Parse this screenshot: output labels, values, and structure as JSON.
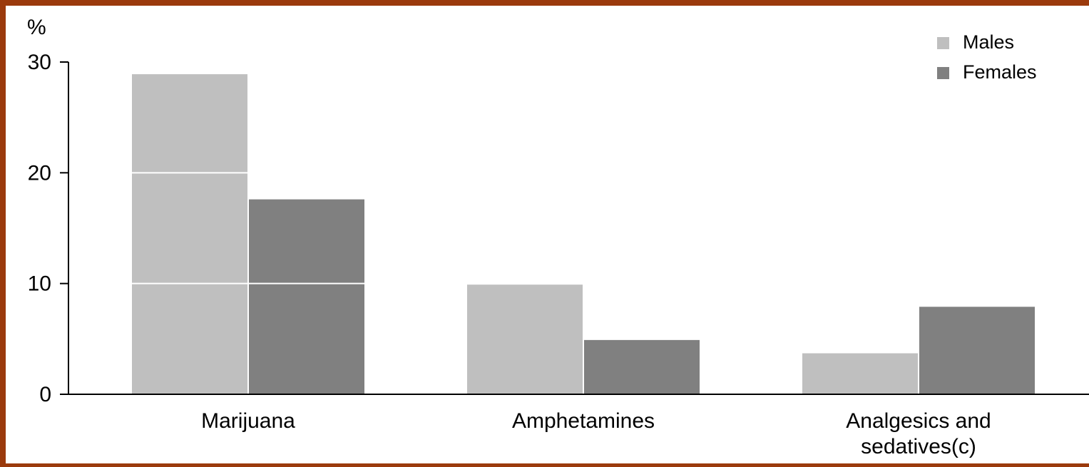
{
  "colors": {
    "frame": "#9b3a0c",
    "background": "#ffffff",
    "males": "#bfbfbf",
    "females": "#808080",
    "gridline": "#ffffff",
    "axis": "#000000"
  },
  "chart_data": {
    "type": "bar",
    "title": "",
    "xlabel": "",
    "ylabel": "%",
    "ylim": [
      0,
      30
    ],
    "yticks": [
      0,
      10,
      20,
      30
    ],
    "grid": "horizontal white lines drawn over bars",
    "legend_position": "top-right",
    "categories": [
      "Marijuana",
      "Amphetamines",
      "Analgesics and sedatives(c)"
    ],
    "category_lines": [
      [
        "Marijuana"
      ],
      [
        "Amphetamines"
      ],
      [
        "Analgesics and",
        "sedatives(c)"
      ]
    ],
    "series": [
      {
        "name": "Males",
        "color": "#bfbfbf",
        "values": [
          28.9,
          9.9,
          3.7
        ]
      },
      {
        "name": "Females",
        "color": "#808080",
        "values": [
          17.6,
          4.9,
          7.9
        ]
      }
    ]
  }
}
